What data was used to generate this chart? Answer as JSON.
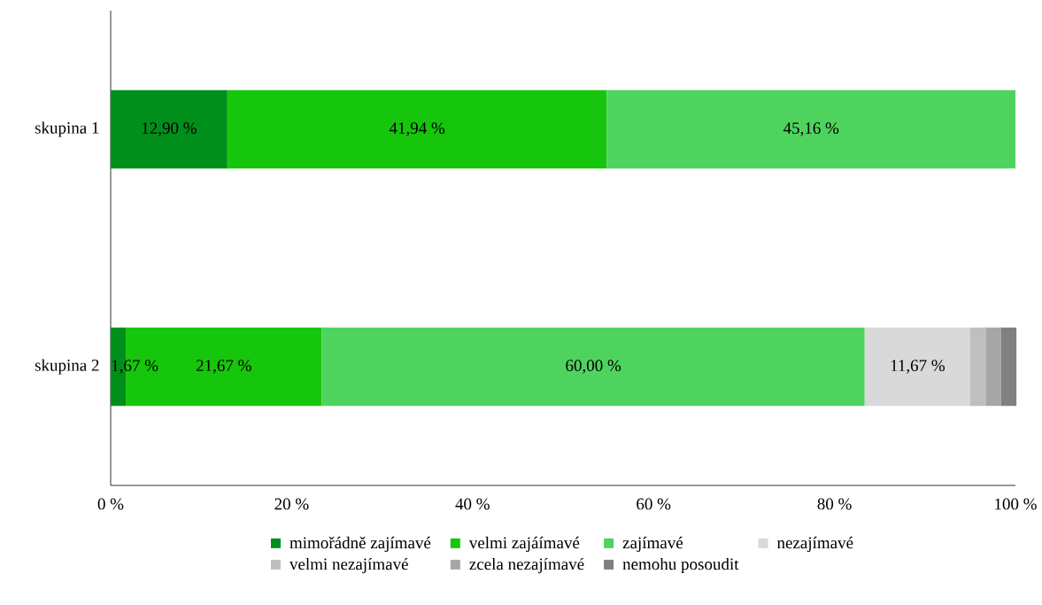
{
  "chart_data": {
    "type": "bar",
    "orientation": "horizontal",
    "stacked": true,
    "categories": [
      "skupina 1",
      "skupina 2"
    ],
    "series": [
      {
        "name": "mimořádně zajímavé",
        "color": "#008f1a",
        "values": [
          12.9,
          1.67
        ],
        "value_labels": [
          "12,90 %",
          "1,67 %"
        ]
      },
      {
        "name": "velmi zajáímavé",
        "color": "#16c60c",
        "values": [
          41.94,
          21.67
        ],
        "value_labels": [
          "41,94 %",
          "21,67 %"
        ]
      },
      {
        "name": "zajímavé",
        "color": "#4fd35f",
        "values": [
          45.16,
          60.0
        ],
        "value_labels": [
          "45,16 %",
          "60,00 %"
        ]
      },
      {
        "name": "nezajímavé",
        "color": "#d9d9d9",
        "values": [
          null,
          11.67
        ],
        "value_labels": [
          null,
          "11,67 %"
        ]
      },
      {
        "name": "velmi nezajímavé",
        "color": "#bfbfbf",
        "values": [
          null,
          1.7
        ],
        "value_labels": [
          null,
          null
        ]
      },
      {
        "name": "zcela nezajímavé",
        "color": "#a6a6a6",
        "values": [
          null,
          1.7
        ],
        "value_labels": [
          null,
          null
        ]
      },
      {
        "name": "nemohu posoudit",
        "color": "#808080",
        "values": [
          null,
          1.7
        ],
        "value_labels": [
          null,
          null
        ]
      }
    ],
    "xlim": [
      0,
      100
    ],
    "xticks": [
      {
        "value": 0,
        "label": "0 %"
      },
      {
        "value": 20,
        "label": "20 %"
      },
      {
        "value": 40,
        "label": "40 %"
      },
      {
        "value": 60,
        "label": "60 %"
      },
      {
        "value": 80,
        "label": "80 %"
      },
      {
        "value": 100,
        "label": "100 %"
      }
    ],
    "legend": "bottom",
    "grid": false
  }
}
